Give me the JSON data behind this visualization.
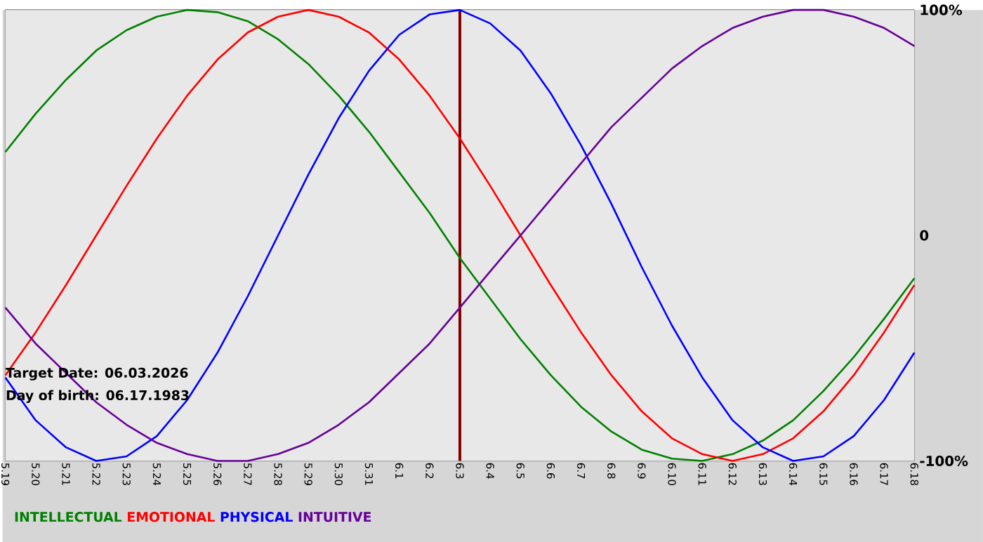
{
  "chart_data": {
    "type": "line",
    "categories": [
      "5.19",
      "5.20",
      "5.21",
      "5.22",
      "5.23",
      "5.24",
      "5.25",
      "5.26",
      "5.27",
      "5.28",
      "5.29",
      "5.30",
      "5.31",
      "6.1",
      "6.2",
      "6.3",
      "6.4",
      "6.5",
      "6.6",
      "6.7",
      "6.8",
      "6.9",
      "6.10",
      "6.11",
      "6.12",
      "6.13",
      "6.14",
      "6.15",
      "6.16",
      "6.17",
      "6.18"
    ],
    "series": [
      {
        "name": "INTELLECTUAL",
        "color": "#008000",
        "values": [
          37,
          54,
          69,
          82,
          91,
          97,
          100,
          99,
          95,
          87,
          76,
          62,
          46,
          28,
          10,
          -10,
          -28,
          -46,
          -62,
          -76,
          -87,
          -95,
          -99,
          -100,
          -97,
          -91,
          -82,
          -69,
          -54,
          -37,
          -19
        ]
      },
      {
        "name": "EMOTIONAL",
        "color": "#ff0000",
        "values": [
          -62,
          -43,
          -22,
          0,
          22,
          43,
          62,
          78,
          90,
          97,
          100,
          97,
          90,
          78,
          62,
          43,
          22,
          0,
          -22,
          -43,
          -62,
          -78,
          -90,
          -97,
          -100,
          -97,
          -90,
          -78,
          -62,
          -43,
          -22
        ]
      },
      {
        "name": "PHYSICAL",
        "color": "#0000ff",
        "values": [
          -63,
          -82,
          -94,
          -100,
          -98,
          -89,
          -73,
          -52,
          -27,
          0,
          27,
          52,
          73,
          89,
          98,
          100,
          94,
          82,
          63,
          40,
          14,
          -14,
          -40,
          -63,
          -82,
          -94,
          -100,
          -98,
          -89,
          -73,
          -52
        ]
      },
      {
        "name": "INTUITIVE",
        "color": "#660099",
        "values": [
          -32,
          -48,
          -61,
          -74,
          -84,
          -92,
          -97,
          -100,
          -100,
          -97,
          -92,
          -84,
          -74,
          -61,
          -48,
          -32,
          -16,
          0,
          16,
          32,
          48,
          61,
          74,
          84,
          92,
          97,
          100,
          100,
          97,
          92,
          84
        ]
      }
    ],
    "ylim": [
      -100,
      100
    ],
    "yticks": [
      {
        "value": -100,
        "label": "-100%"
      },
      0,
      {
        "value": 100,
        "label": "100%"
      }
    ],
    "grid": true,
    "legend": "bottom",
    "marker": "none",
    "line_style": "solid",
    "ref_lines": [
      {
        "axis": "x",
        "value": "6.3",
        "color": "#800000"
      }
    ],
    "annotations": [
      "Target Date: 06.03.2026",
      "Day of birth: 06.17.1983"
    ]
  }
}
